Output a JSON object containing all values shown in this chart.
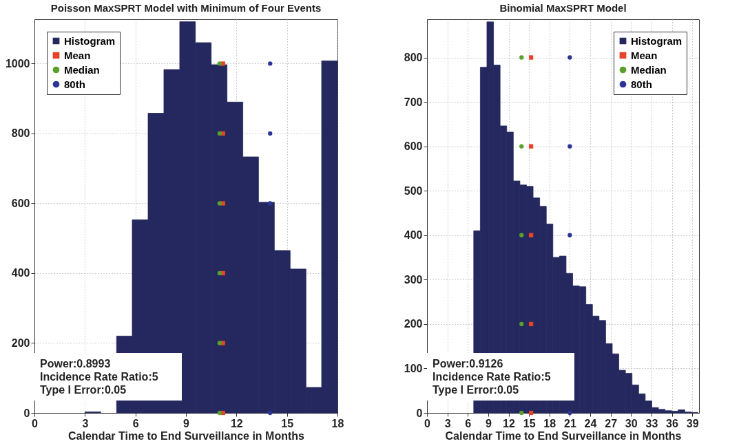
{
  "chart_data": [
    {
      "type": "histogram",
      "title": "Poisson MaxSPRT Model with Minimum of Four Events",
      "xlabel": "Calendar Time to End Surveillance in Months",
      "xlim": [
        0,
        18
      ],
      "xticks": [
        0,
        3,
        6,
        9,
        12,
        15,
        18
      ],
      "ylim": [
        0,
        1127
      ],
      "yticks": [
        0,
        200,
        400,
        600,
        800,
        1000
      ],
      "grid": true,
      "legend": "top left",
      "bins": [
        3,
        3.94,
        4.88,
        5.81,
        6.75,
        7.69,
        8.63,
        9.56,
        10.5,
        11.44,
        12.38,
        13.31,
        14.25,
        15.19,
        16.13,
        17.06,
        18
      ],
      "series": [
        {
          "name": "Histogram",
          "color": "#24285e",
          "values": [
            3,
            null,
            220,
            553,
            858,
            983,
            1120,
            1060,
            997,
            890,
            733,
            603,
            465,
            412,
            73,
            1008
          ]
        },
        {
          "name": "Mean",
          "type": "scatter",
          "color": "#e8432a",
          "marker": "square",
          "x": [
            11.2,
            11.2,
            11.2,
            11.2,
            11.2,
            11.2
          ],
          "values": [
            0,
            200,
            400,
            600,
            800,
            1000
          ]
        },
        {
          "name": "Median",
          "type": "scatter",
          "color": "#5aa02c",
          "marker": "circle",
          "x": [
            11,
            11,
            11,
            11,
            11,
            11
          ],
          "values": [
            0,
            200,
            400,
            600,
            800,
            1000
          ]
        },
        {
          "name": "80th",
          "type": "scatter",
          "color": "#2c3596",
          "marker": "circle",
          "x": [
            14,
            null,
            null,
            14,
            14,
            14
          ],
          "values": [
            0,
            null,
            null,
            600,
            800,
            1000
          ]
        }
      ],
      "annotations": [
        "Power:0.8993",
        "Incidence Rate Ratio:5",
        "Type I Error:0.05"
      ]
    },
    {
      "type": "histogram",
      "title": "Binomial MaxSPRT Model",
      "xlabel": "Calendar Time to End Surveillance in Months",
      "xlim": [
        0,
        40
      ],
      "xticks": [
        0,
        3,
        6,
        9,
        12,
        15,
        18,
        21,
        24,
        27,
        30,
        33,
        36,
        39
      ],
      "ylim": [
        0,
        886
      ],
      "yticks": [
        0,
        100,
        200,
        300,
        400,
        500,
        600,
        700,
        800
      ],
      "grid": true,
      "legend": "top right",
      "bins": [
        5.9,
        6.87,
        7.84,
        8.81,
        9.78,
        10.75,
        11.72,
        12.69,
        13.66,
        14.63,
        15.6,
        16.57,
        17.54,
        18.51,
        19.48,
        20.45,
        21.42,
        22.39,
        23.36,
        24.33,
        25.3,
        26.27,
        27.24,
        28.21,
        29.18,
        30.15,
        31.12,
        32.09,
        33.06,
        34.03,
        35,
        35.97,
        36.94,
        37.91,
        38.88,
        39.85
      ],
      "series": [
        {
          "name": "Histogram",
          "color": "#24285e",
          "values": [
            null,
            410,
            778,
            880,
            783,
            646,
            632,
            522,
            513,
            510,
            484,
            465,
            425,
            350,
            353,
            314,
            286,
            284,
            244,
            218,
            208,
            156,
            133,
            96,
            89,
            63,
            43,
            27,
            12,
            8,
            5,
            4,
            7,
            2,
            1
          ]
        },
        {
          "name": "Mean",
          "type": "scatter",
          "color": "#e8432a",
          "marker": "square",
          "x": [
            15.3,
            15.3,
            15.3,
            15.3,
            15.3
          ],
          "values": [
            0,
            200,
            400,
            600,
            800
          ]
        },
        {
          "name": "Median",
          "type": "scatter",
          "color": "#5aa02c",
          "marker": "circle",
          "x": [
            13.9,
            13.9,
            13.9,
            13.9,
            13.9
          ],
          "values": [
            0,
            200,
            400,
            600,
            800
          ]
        },
        {
          "name": "80th",
          "type": "scatter",
          "color": "#2c3596",
          "marker": "circle",
          "x": [
            21,
            null,
            21,
            21,
            21
          ],
          "values": [
            0,
            null,
            400,
            600,
            800
          ]
        }
      ],
      "annotations": [
        "Power:0.9126",
        "Incidence Rate Ratio:5",
        "Type I Error:0.05"
      ]
    }
  ]
}
